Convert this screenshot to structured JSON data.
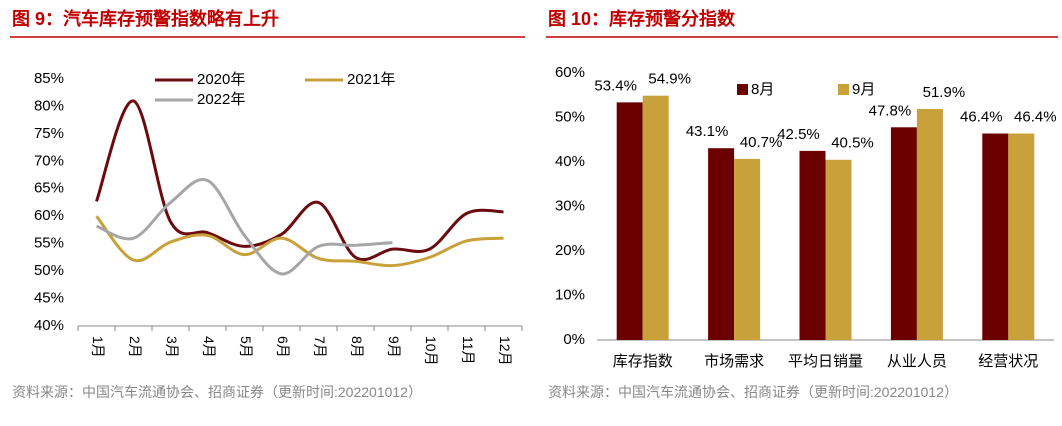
{
  "chart_data": [
    {
      "type": "line",
      "title": "图 9：汽车库存预警指数略有上升",
      "source": "资料来源：中国汽车流通协会、招商证券（更新时间:202201012）",
      "categories": [
        "1月",
        "2月",
        "3月",
        "4月",
        "5月",
        "6月",
        "7月",
        "8月",
        "9月",
        "10月",
        "11月",
        "12月"
      ],
      "series": [
        {
          "name": "2020年",
          "color": "#6b0a0f",
          "values": [
            62.7,
            81,
            59,
            57,
            54.5,
            56.7,
            62.5,
            52.5,
            54,
            54,
            60.5,
            60.8
          ]
        },
        {
          "name": "2021年",
          "color": "#c9a13b",
          "values": [
            60,
            52,
            55.3,
            56.5,
            53,
            56,
            52.3,
            51.8,
            51,
            52.5,
            55.5,
            56
          ]
        },
        {
          "name": "2022年",
          "color": "#a6a6a6",
          "values": [
            58.2,
            56,
            62.5,
            66.5,
            56.5,
            49.5,
            54.5,
            54.7,
            55.2,
            null,
            null,
            null
          ]
        }
      ],
      "ylim": [
        40,
        85
      ],
      "yticks": [
        {
          "value": 40,
          "label": "40%"
        },
        {
          "value": 45,
          "label": "45%"
        },
        {
          "value": 50,
          "label": "50%"
        },
        {
          "value": 55,
          "label": "55%"
        },
        {
          "value": 60,
          "label": "60%"
        },
        {
          "value": 65,
          "label": "65%"
        },
        {
          "value": 70,
          "label": "70%"
        },
        {
          "value": 75,
          "label": "75%"
        },
        {
          "value": 80,
          "label": "80%"
        },
        {
          "value": 85,
          "label": "85%"
        }
      ]
    },
    {
      "type": "bar",
      "title": "图 10：库存预警分指数",
      "source": "资料来源：中国汽车流通协会、招商证券（更新时间:202201012）",
      "categories": [
        "库存指数",
        "市场需求",
        "平均日销量",
        "从业人员",
        "经营状况"
      ],
      "series": [
        {
          "name": "8月",
          "color": "#6b0000",
          "values": [
            53.4,
            43.1,
            42.5,
            47.8,
            46.4
          ],
          "value_labels": [
            "53.4%",
            "43.1%",
            "42.5%",
            "47.8%",
            "46.4%"
          ]
        },
        {
          "name": "9月",
          "color": "#c9a13b",
          "values": [
            54.9,
            40.7,
            40.5,
            51.9,
            46.4
          ],
          "value_labels": [
            "54.9%",
            "40.7%",
            "40.5%",
            "51.9%",
            "46.4%"
          ]
        }
      ],
      "ylim": [
        0,
        60
      ],
      "yticks": [
        {
          "value": 0,
          "label": "0%"
        },
        {
          "value": 10,
          "label": "10%"
        },
        {
          "value": 20,
          "label": "20%"
        },
        {
          "value": 30,
          "label": "30%"
        },
        {
          "value": 40,
          "label": "40%"
        },
        {
          "value": 50,
          "label": "50%"
        },
        {
          "value": 60,
          "label": "60%"
        }
      ]
    }
  ]
}
